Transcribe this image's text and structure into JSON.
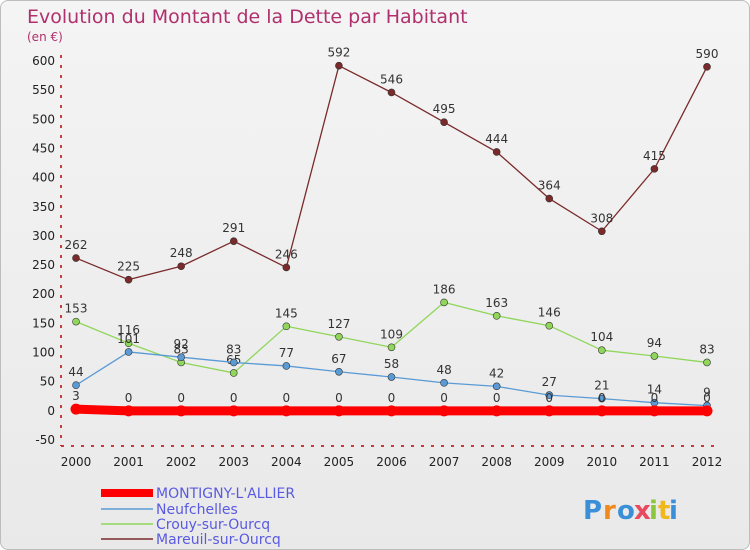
{
  "chart_data": {
    "type": "line",
    "title": "Evolution du Montant de la Dette par Habitant",
    "subtitle": "(en €)",
    "x": [
      "2000",
      "2001",
      "2002",
      "2003",
      "2004",
      "2005",
      "2006",
      "2007",
      "2008",
      "2009",
      "2010",
      "2011",
      "2012"
    ],
    "ylim": [
      -50,
      600
    ],
    "yticks": [
      -50,
      0,
      50,
      100,
      150,
      200,
      250,
      300,
      350,
      400,
      450,
      500,
      550,
      600
    ],
    "grid": false,
    "legend_position": "bottom-left",
    "series": [
      {
        "name": "MONTIGNY-L'ALLIER",
        "color": "#ff0000",
        "values": [
          3,
          0,
          0,
          0,
          0,
          0,
          0,
          0,
          0,
          0,
          0,
          0,
          0
        ]
      },
      {
        "name": "Neufchelles",
        "color": "#5b9bd5",
        "values": [
          44,
          101,
          92,
          83,
          77,
          67,
          58,
          48,
          42,
          27,
          21,
          14,
          9
        ]
      },
      {
        "name": "Crouy-sur-Ourcq",
        "color": "#8fd65a",
        "values": [
          153,
          116,
          83,
          65,
          145,
          127,
          109,
          186,
          163,
          146,
          104,
          94,
          83
        ]
      },
      {
        "name": "Mareuil-sur-Ourcq",
        "color": "#7a2a2a",
        "values": [
          262,
          225,
          248,
          291,
          246,
          592,
          546,
          495,
          444,
          364,
          308,
          415,
          590
        ]
      }
    ]
  },
  "logo": {
    "text": "Proxiti"
  }
}
